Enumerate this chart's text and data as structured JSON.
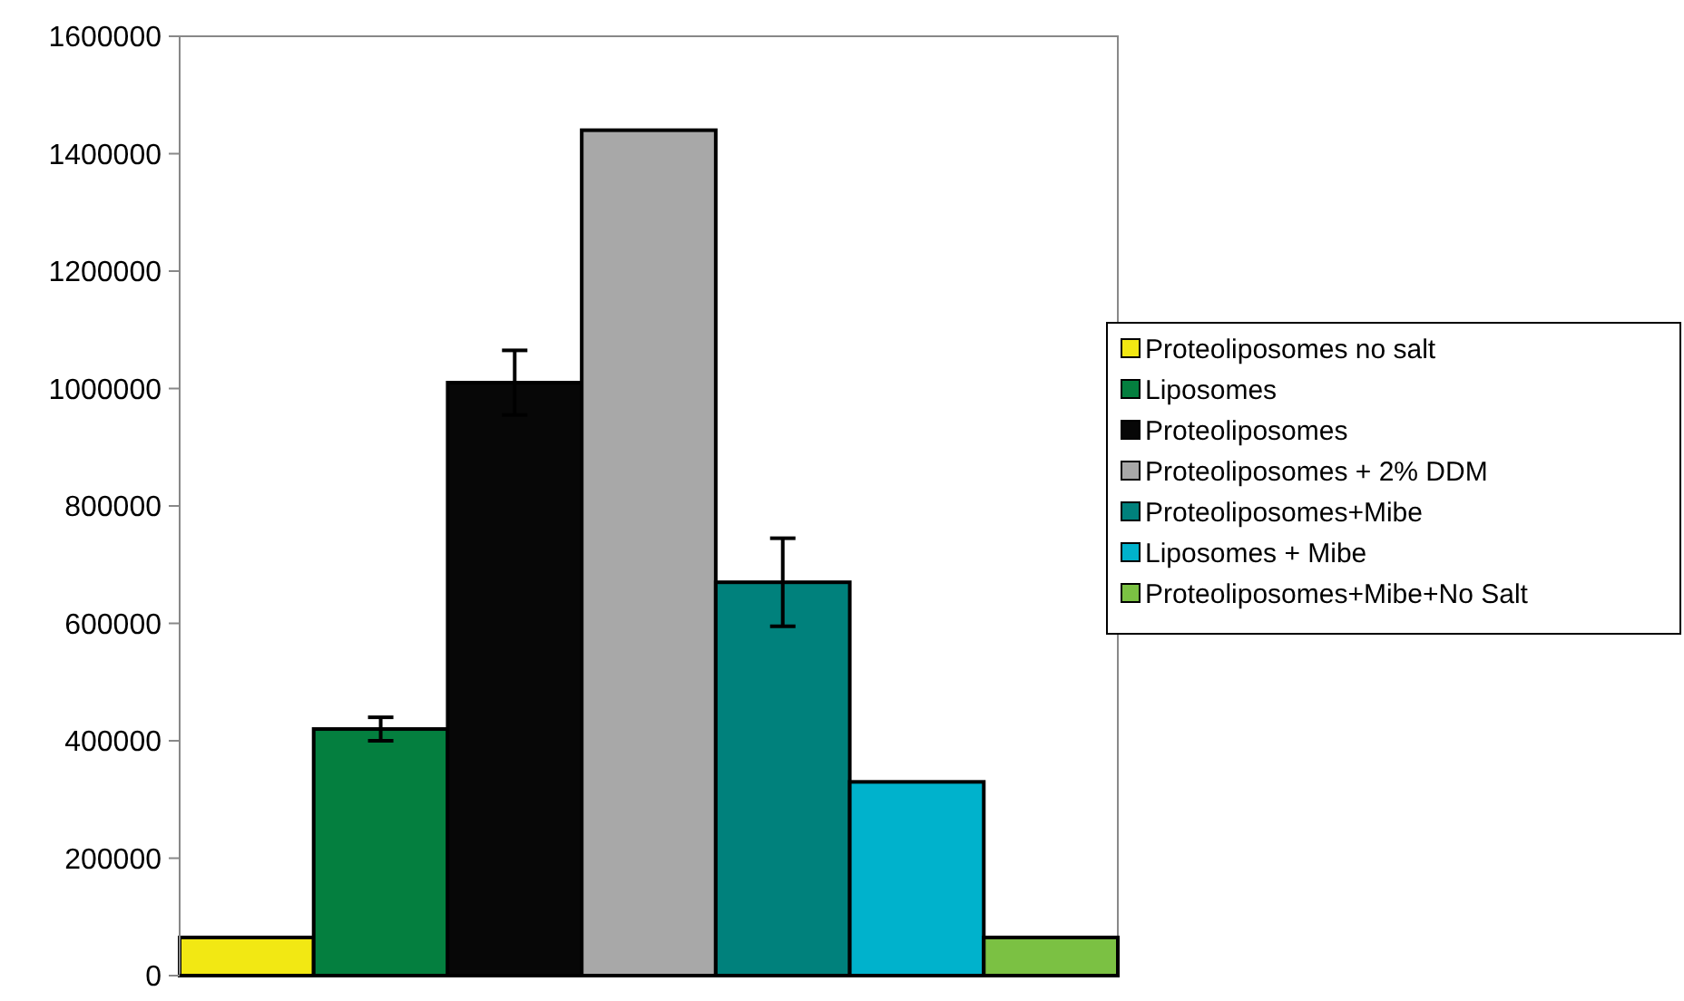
{
  "chart_data": {
    "type": "bar",
    "categories": [
      null
    ],
    "ylim": [
      0,
      1600000
    ],
    "yticks": [
      0,
      200000,
      400000,
      600000,
      800000,
      1000000,
      1200000,
      1400000,
      1600000
    ],
    "legend": "right",
    "grid": false,
    "series": [
      {
        "name": "Proteoliposomes no salt",
        "color": "#f2e813",
        "values": [
          65000
        ]
      },
      {
        "name": "Liposomes",
        "color": "#047f3f",
        "values": [
          420000
        ],
        "errors": [
          20000
        ]
      },
      {
        "name": "Proteoliposomes",
        "color": "#070707",
        "values": [
          1010000
        ],
        "errors": [
          55000
        ]
      },
      {
        "name": "Proteoliposomes + 2% DDM",
        "color": "#a8a8a8",
        "values": [
          1440000
        ]
      },
      {
        "name": "Proteoliposomes+Mibe",
        "color": "#00817c",
        "values": [
          670000
        ],
        "errors": [
          75000
        ]
      },
      {
        "name": "Liposomes + Mibe",
        "color": "#00b2cc",
        "values": [
          330000
        ]
      },
      {
        "name": "Proteoliposomes+Mibe+No Salt",
        "color": "#7bc143",
        "values": [
          65000
        ]
      }
    ]
  }
}
